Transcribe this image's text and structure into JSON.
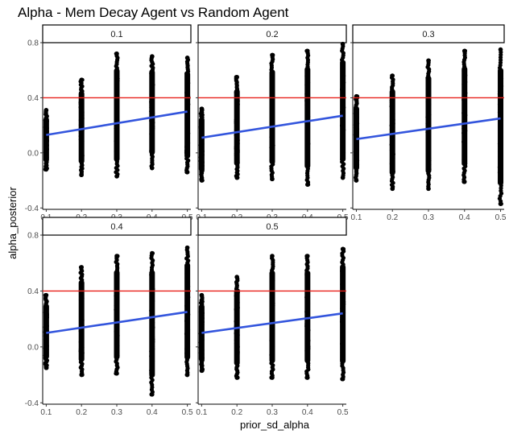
{
  "chart_data": {
    "type": "scatter",
    "title": "Alpha - Mem Decay Agent vs Random Agent",
    "xlabel": "prior_sd_alpha",
    "ylabel": "alpha_posterior",
    "xlim": [
      0.09,
      0.51
    ],
    "ylim": [
      -0.41,
      0.8
    ],
    "x_ticks": [
      0.1,
      0.2,
      0.3,
      0.4,
      0.5
    ],
    "x_tick_labels": [
      "0.1",
      "0.2",
      "0.3",
      "0.4",
      "0.5"
    ],
    "y_ticks": [
      -0.4,
      0.0,
      0.4,
      0.8
    ],
    "y_tick_labels": [
      "-0.4",
      "0.0",
      "0.4",
      "0.8"
    ],
    "reference_line_y": 0.4,
    "grid": false,
    "colors": {
      "points": "#000000",
      "fit": "#3355dd",
      "reference": "#e8201a"
    },
    "facets": [
      {
        "label": "0.1",
        "point_ranges": [
          {
            "x": 0.1,
            "min": -0.12,
            "max": 0.31
          },
          {
            "x": 0.2,
            "min": -0.16,
            "max": 0.53
          },
          {
            "x": 0.3,
            "min": -0.17,
            "max": 0.72
          },
          {
            "x": 0.4,
            "min": -0.11,
            "max": 0.7
          },
          {
            "x": 0.5,
            "min": -0.14,
            "max": 0.69
          }
        ],
        "fit_line": [
          [
            0.1,
            0.13
          ],
          [
            0.5,
            0.3
          ]
        ]
      },
      {
        "label": "0.2",
        "point_ranges": [
          {
            "x": 0.1,
            "min": -0.2,
            "max": 0.32
          },
          {
            "x": 0.2,
            "min": -0.18,
            "max": 0.55
          },
          {
            "x": 0.3,
            "min": -0.19,
            "max": 0.71
          },
          {
            "x": 0.4,
            "min": -0.23,
            "max": 0.74
          },
          {
            "x": 0.5,
            "min": -0.18,
            "max": 0.79
          }
        ],
        "fit_line": [
          [
            0.1,
            0.11
          ],
          [
            0.5,
            0.27
          ]
        ]
      },
      {
        "label": "0.3",
        "point_ranges": [
          {
            "x": 0.1,
            "min": -0.2,
            "max": 0.41
          },
          {
            "x": 0.2,
            "min": -0.26,
            "max": 0.56
          },
          {
            "x": 0.3,
            "min": -0.26,
            "max": 0.67
          },
          {
            "x": 0.4,
            "min": -0.21,
            "max": 0.74
          },
          {
            "x": 0.5,
            "min": -0.37,
            "max": 0.75
          }
        ],
        "fit_line": [
          [
            0.1,
            0.1
          ],
          [
            0.5,
            0.25
          ]
        ]
      },
      {
        "label": "0.4",
        "point_ranges": [
          {
            "x": 0.1,
            "min": -0.15,
            "max": 0.37
          },
          {
            "x": 0.2,
            "min": -0.2,
            "max": 0.57
          },
          {
            "x": 0.3,
            "min": -0.19,
            "max": 0.65
          },
          {
            "x": 0.4,
            "min": -0.34,
            "max": 0.67
          },
          {
            "x": 0.5,
            "min": -0.2,
            "max": 0.71
          }
        ],
        "fit_line": [
          [
            0.1,
            0.1
          ],
          [
            0.5,
            0.25
          ]
        ]
      },
      {
        "label": "0.5",
        "point_ranges": [
          {
            "x": 0.1,
            "min": -0.17,
            "max": 0.37
          },
          {
            "x": 0.2,
            "min": -0.22,
            "max": 0.5
          },
          {
            "x": 0.3,
            "min": -0.22,
            "max": 0.65
          },
          {
            "x": 0.4,
            "min": -0.22,
            "max": 0.65
          },
          {
            "x": 0.5,
            "min": -0.23,
            "max": 0.7
          }
        ],
        "fit_line": [
          [
            0.1,
            0.1
          ],
          [
            0.5,
            0.24
          ]
        ]
      }
    ]
  }
}
